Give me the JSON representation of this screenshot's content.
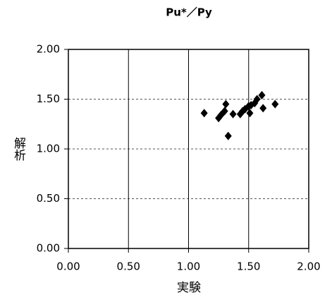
{
  "chart_data": {
    "type": "scatter",
    "title": "Pu*／Py",
    "x_label": "実験",
    "y_label": "解析",
    "xlim": [
      0,
      2
    ],
    "ylim": [
      0,
      2
    ],
    "xticks": [
      {
        "value": 0,
        "label": "0.00"
      },
      {
        "value": 0.5,
        "label": "0.50"
      },
      {
        "value": 1,
        "label": "1.00"
      },
      {
        "value": 1.5,
        "label": "1.50"
      },
      {
        "value": 2,
        "label": "2.00"
      }
    ],
    "yticks": [
      {
        "value": 0,
        "label": "0.00"
      },
      {
        "value": 0.5,
        "label": "0.50"
      },
      {
        "value": 1,
        "label": "1.00"
      },
      {
        "value": 1.5,
        "label": "1.50"
      },
      {
        "value": 2,
        "label": "2.00"
      }
    ],
    "grid": true,
    "color": "#000000",
    "x": [
      1.13,
      1.25,
      1.27,
      1.3,
      1.31,
      1.33,
      1.37,
      1.43,
      1.45,
      1.47,
      1.5,
      1.51,
      1.52,
      1.55,
      1.57,
      1.61,
      1.62,
      1.72
    ],
    "values": [
      1.36,
      1.31,
      1.34,
      1.38,
      1.45,
      1.13,
      1.35,
      1.35,
      1.38,
      1.4,
      1.43,
      1.36,
      1.44,
      1.46,
      1.5,
      1.54,
      1.41,
      1.45
    ]
  }
}
